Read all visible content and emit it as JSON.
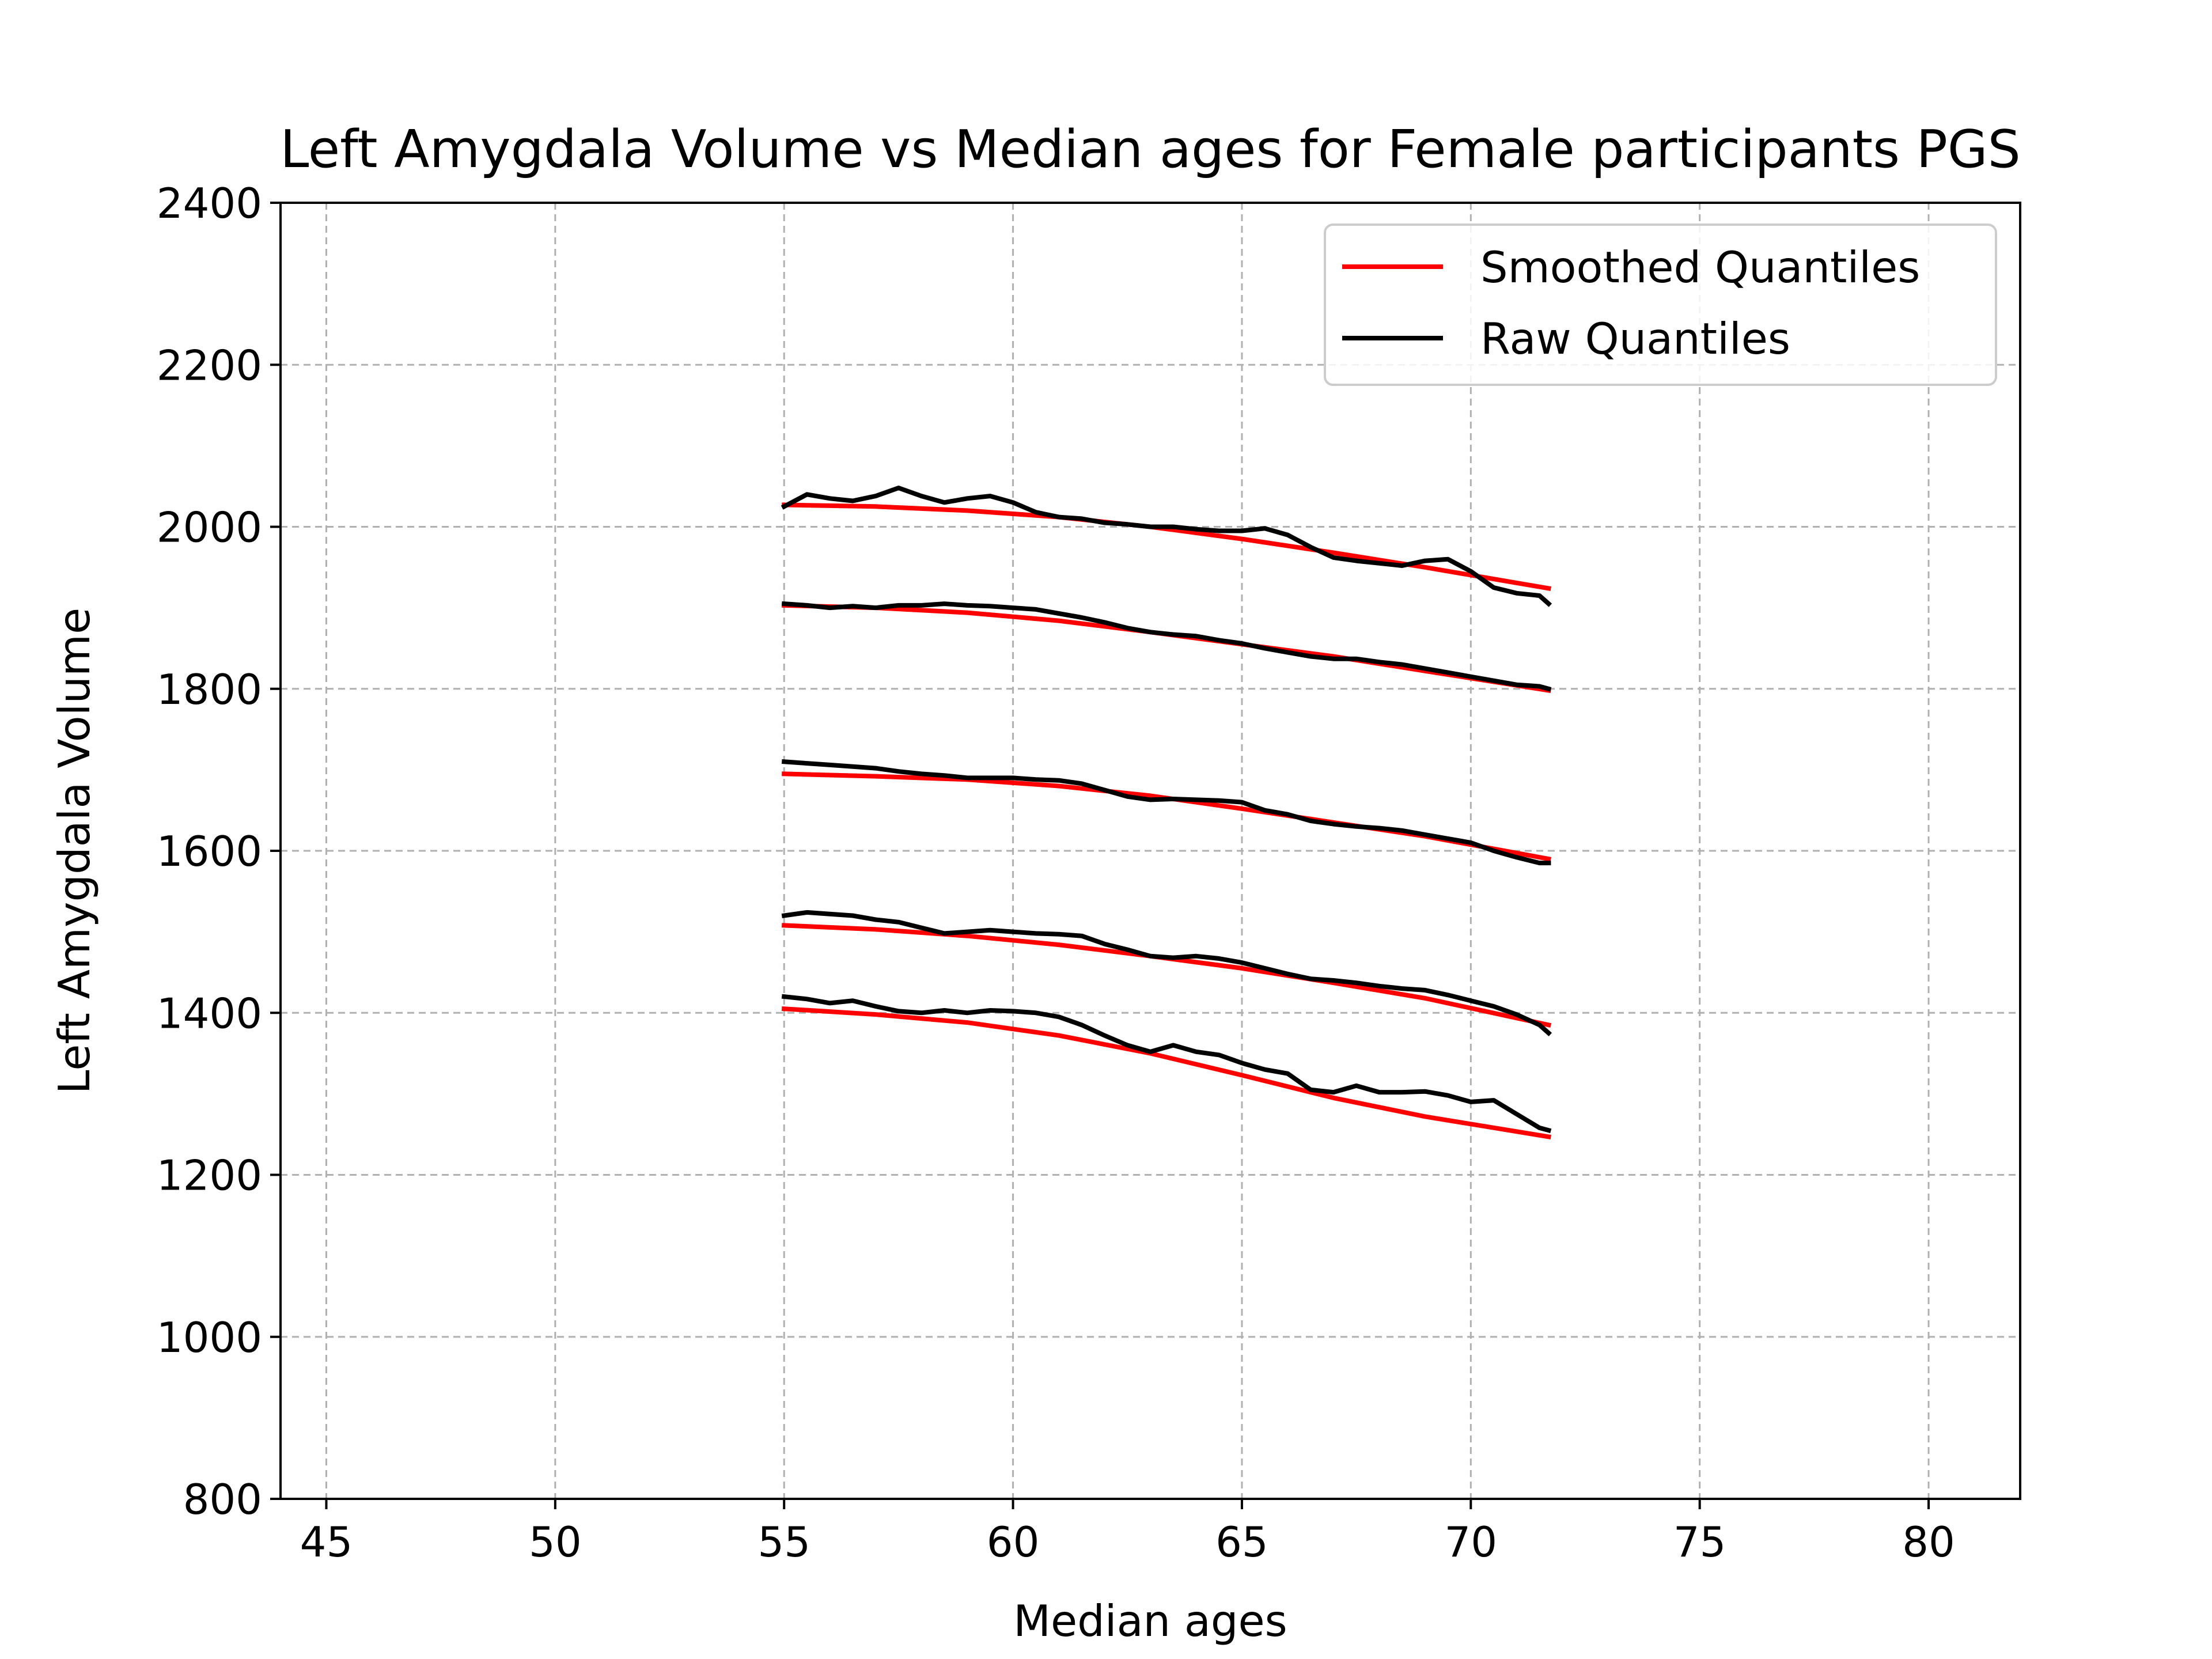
{
  "chart_data": {
    "type": "line",
    "title": "Left Amygdala Volume vs Median ages for Female participants  PGS",
    "xlabel": "Median ages",
    "ylabel": "Left Amygdala Volume",
    "xlim": [
      44,
      82
    ],
    "ylim": [
      800,
      2400
    ],
    "xticks": [
      45,
      50,
      55,
      60,
      65,
      70,
      75,
      80
    ],
    "yticks": [
      800,
      1000,
      1200,
      1400,
      1600,
      1800,
      2000,
      2200,
      2400
    ],
    "grid": true,
    "legend_position": "top-right",
    "legend": [
      {
        "label": "Smoothed Quantiles",
        "color": "#ff0000"
      },
      {
        "label": "Raw Quantiles",
        "color": "#000000"
      }
    ],
    "colors": {
      "smoothed": "#ff0000",
      "raw": "#000000",
      "grid": "#b0b0b0"
    },
    "series": [
      {
        "group": "Smoothed Quantiles",
        "color": "#ff0000",
        "x": [
          55,
          57,
          59,
          61,
          63,
          65,
          67,
          69,
          71.7
        ],
        "y": [
          1405,
          1398,
          1388,
          1372,
          1350,
          1323,
          1295,
          1272,
          1247
        ]
      },
      {
        "group": "Smoothed Quantiles",
        "color": "#ff0000",
        "x": [
          55,
          57,
          59,
          61,
          63,
          65,
          67,
          69,
          71.7
        ],
        "y": [
          1508,
          1503,
          1495,
          1484,
          1470,
          1455,
          1437,
          1418,
          1385
        ]
      },
      {
        "group": "Smoothed Quantiles",
        "color": "#ff0000",
        "x": [
          55,
          57,
          59,
          61,
          63,
          65,
          67,
          69,
          71.7
        ],
        "y": [
          1695,
          1692,
          1688,
          1680,
          1668,
          1652,
          1635,
          1618,
          1590
        ]
      },
      {
        "group": "Smoothed Quantiles",
        "color": "#ff0000",
        "x": [
          55,
          57,
          59,
          61,
          63,
          65,
          67,
          69,
          71.7
        ],
        "y": [
          1903,
          1900,
          1894,
          1884,
          1870,
          1855,
          1840,
          1822,
          1798
        ]
      },
      {
        "group": "Smoothed Quantiles",
        "color": "#ff0000",
        "x": [
          55,
          57,
          59,
          61,
          63,
          65,
          67,
          69,
          71.7
        ],
        "y": [
          2027,
          2025,
          2020,
          2012,
          2000,
          1985,
          1968,
          1950,
          1924
        ]
      },
      {
        "group": "Raw Quantiles",
        "color": "#000000",
        "x": [
          55,
          55.5,
          56,
          56.5,
          57,
          57.5,
          58,
          58.5,
          59,
          59.5,
          60,
          60.5,
          61,
          61.5,
          62,
          62.5,
          63,
          63.5,
          64,
          64.5,
          65,
          65.5,
          66,
          66.5,
          67,
          67.5,
          68,
          68.5,
          69,
          69.5,
          70,
          70.5,
          71,
          71.5,
          71.7
        ],
        "y": [
          1420,
          1417,
          1412,
          1415,
          1408,
          1402,
          1400,
          1403,
          1400,
          1403,
          1402,
          1400,
          1395,
          1385,
          1372,
          1360,
          1352,
          1360,
          1352,
          1348,
          1338,
          1330,
          1325,
          1305,
          1302,
          1310,
          1302,
          1302,
          1303,
          1298,
          1290,
          1292,
          1275,
          1258,
          1255
        ]
      },
      {
        "group": "Raw Quantiles",
        "color": "#000000",
        "x": [
          55,
          55.5,
          56,
          56.5,
          57,
          57.5,
          58,
          58.5,
          59,
          59.5,
          60,
          60.5,
          61,
          61.5,
          62,
          62.5,
          63,
          63.5,
          64,
          64.5,
          65,
          65.5,
          66,
          66.5,
          67,
          67.5,
          68,
          68.5,
          69,
          69.5,
          70,
          70.5,
          71,
          71.5,
          71.7
        ],
        "y": [
          1520,
          1524,
          1522,
          1520,
          1515,
          1512,
          1505,
          1498,
          1500,
          1502,
          1500,
          1498,
          1497,
          1495,
          1485,
          1478,
          1470,
          1468,
          1470,
          1467,
          1462,
          1455,
          1448,
          1442,
          1440,
          1437,
          1433,
          1430,
          1428,
          1422,
          1415,
          1408,
          1398,
          1385,
          1375
        ]
      },
      {
        "group": "Raw Quantiles",
        "color": "#000000",
        "x": [
          55,
          55.5,
          56,
          56.5,
          57,
          57.5,
          58,
          58.5,
          59,
          59.5,
          60,
          60.5,
          61,
          61.5,
          62,
          62.5,
          63,
          63.5,
          64,
          64.5,
          65,
          65.5,
          66,
          66.5,
          67,
          67.5,
          68,
          68.5,
          69,
          69.5,
          70,
          70.5,
          71,
          71.5,
          71.7
        ],
        "y": [
          1710,
          1708,
          1706,
          1704,
          1702,
          1698,
          1695,
          1693,
          1690,
          1690,
          1690,
          1688,
          1687,
          1683,
          1675,
          1667,
          1663,
          1664,
          1663,
          1662,
          1660,
          1650,
          1645,
          1637,
          1633,
          1630,
          1628,
          1625,
          1620,
          1615,
          1610,
          1600,
          1592,
          1585,
          1585
        ]
      },
      {
        "group": "Raw Quantiles",
        "color": "#000000",
        "x": [
          55,
          55.5,
          56,
          56.5,
          57,
          57.5,
          58,
          58.5,
          59,
          59.5,
          60,
          60.5,
          61,
          61.5,
          62,
          62.5,
          63,
          63.5,
          64,
          64.5,
          65,
          65.5,
          66,
          66.5,
          67,
          67.5,
          68,
          68.5,
          69,
          69.5,
          70,
          70.5,
          71,
          71.5,
          71.7
        ],
        "y": [
          1905,
          1903,
          1900,
          1902,
          1900,
          1903,
          1903,
          1905,
          1903,
          1902,
          1900,
          1898,
          1893,
          1888,
          1882,
          1875,
          1870,
          1867,
          1865,
          1860,
          1856,
          1850,
          1845,
          1840,
          1837,
          1837,
          1833,
          1830,
          1825,
          1820,
          1815,
          1810,
          1805,
          1803,
          1800
        ]
      },
      {
        "group": "Raw Quantiles",
        "color": "#000000",
        "x": [
          55,
          55.5,
          56,
          56.5,
          57,
          57.5,
          58,
          58.5,
          59,
          59.5,
          60,
          60.5,
          61,
          61.5,
          62,
          62.5,
          63,
          63.5,
          64,
          64.5,
          65,
          65.5,
          66,
          66.5,
          67,
          67.5,
          68,
          68.5,
          69,
          69.5,
          70,
          70.5,
          71,
          71.5,
          71.7
        ],
        "y": [
          2025,
          2040,
          2035,
          2032,
          2038,
          2048,
          2038,
          2030,
          2035,
          2038,
          2030,
          2018,
          2012,
          2010,
          2005,
          2003,
          2000,
          2000,
          1997,
          1995,
          1995,
          1998,
          1990,
          1975,
          1962,
          1958,
          1955,
          1952,
          1958,
          1960,
          1945,
          1925,
          1918,
          1915,
          1905
        ]
      }
    ]
  }
}
